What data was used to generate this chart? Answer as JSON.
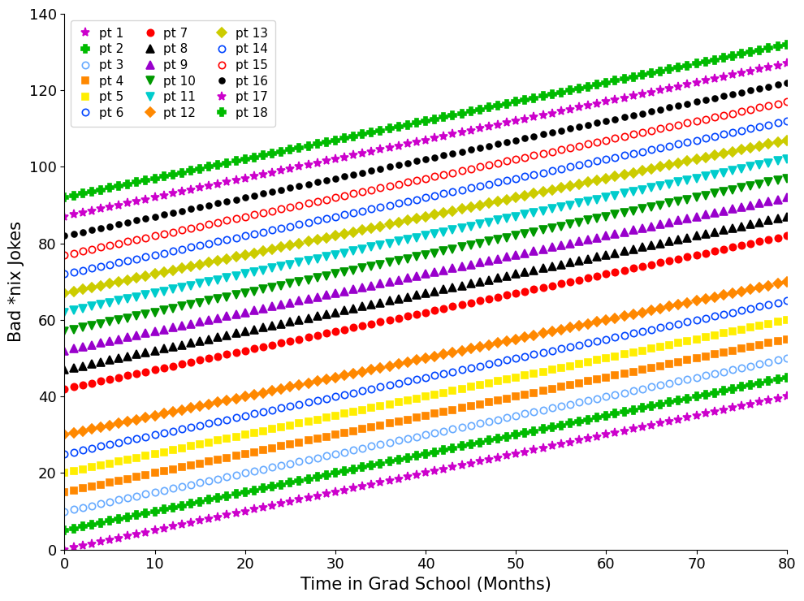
{
  "xlabel": "Time in Grad School (Months)",
  "ylabel": "Bad *nix Jokes",
  "xlim": [
    0,
    80
  ],
  "ylim": [
    0,
    140
  ],
  "xticks": [
    0,
    10,
    20,
    30,
    40,
    50,
    60,
    70,
    80
  ],
  "yticks": [
    0,
    20,
    40,
    60,
    80,
    100,
    120,
    140
  ],
  "series": [
    {
      "label": "pt 1",
      "color": "#CC00CC",
      "marker": "*",
      "ms": 8,
      "intercept": 0,
      "slope": 0.5,
      "open": false
    },
    {
      "label": "pt 2",
      "color": "#00BB00",
      "marker": "P",
      "ms": 7,
      "intercept": 5,
      "slope": 0.5,
      "open": false
    },
    {
      "label": "pt 3",
      "color": "#66AAFF",
      "marker": "o",
      "ms": 6,
      "intercept": 10,
      "slope": 0.5,
      "open": true
    },
    {
      "label": "pt 4",
      "color": "#FF8800",
      "marker": "s",
      "ms": 6,
      "intercept": 15,
      "slope": 0.5,
      "open": false
    },
    {
      "label": "pt 5",
      "color": "#FFEE00",
      "marker": "s",
      "ms": 6,
      "intercept": 20,
      "slope": 0.5,
      "open": false
    },
    {
      "label": "pt 6",
      "color": "#0044FF",
      "marker": "o",
      "ms": 6,
      "intercept": 25,
      "slope": 0.5,
      "open": true
    },
    {
      "label": "pt 7",
      "color": "#FF0000",
      "marker": "o",
      "ms": 6,
      "intercept": 42,
      "slope": 0.5,
      "open": false
    },
    {
      "label": "pt 8",
      "color": "#000000",
      "marker": "^",
      "ms": 7,
      "intercept": 47,
      "slope": 0.5,
      "open": false
    },
    {
      "label": "pt 9",
      "color": "#9900CC",
      "marker": "^",
      "ms": 7,
      "intercept": 52,
      "slope": 0.5,
      "open": false
    },
    {
      "label": "pt 10",
      "color": "#009900",
      "marker": "v",
      "ms": 7,
      "intercept": 57,
      "slope": 0.5,
      "open": false
    },
    {
      "label": "pt 11",
      "color": "#00CCCC",
      "marker": "v",
      "ms": 7,
      "intercept": 62,
      "slope": 0.5,
      "open": false
    },
    {
      "label": "pt 12",
      "color": "#FF8800",
      "marker": "D",
      "ms": 6,
      "intercept": 30,
      "slope": 0.5,
      "open": false
    },
    {
      "label": "pt 13",
      "color": "#CCCC00",
      "marker": "D",
      "ms": 6,
      "intercept": 67,
      "slope": 0.5,
      "open": false
    },
    {
      "label": "pt 14",
      "color": "#0044FF",
      "marker": "o",
      "ms": 6,
      "intercept": 72,
      "slope": 0.5,
      "open": true
    },
    {
      "label": "pt 15",
      "color": "#FF0000",
      "marker": "o",
      "ms": 6,
      "intercept": 77,
      "slope": 0.5,
      "open": true
    },
    {
      "label": "pt 16",
      "color": "#000000",
      "marker": "o",
      "ms": 5,
      "intercept": 82,
      "slope": 0.5,
      "open": false
    },
    {
      "label": "pt 17",
      "color": "#CC00CC",
      "marker": "*",
      "ms": 8,
      "intercept": 87,
      "slope": 0.5,
      "open": false
    },
    {
      "label": "pt 18",
      "color": "#00BB00",
      "marker": "P",
      "ms": 7,
      "intercept": 92,
      "slope": 0.5,
      "open": false
    }
  ],
  "legend_col1": [
    "pt 1",
    "pt 2",
    "pt 3",
    "pt 4",
    "pt 5",
    "pt 6"
  ],
  "legend_col2": [
    "pt 7",
    "pt 8",
    "pt 9",
    "pt 10",
    "pt 11",
    "pt 12"
  ],
  "legend_col3": [
    "pt 13",
    "pt 14",
    "pt 15",
    "pt 16",
    "pt 17",
    "pt 18"
  ]
}
